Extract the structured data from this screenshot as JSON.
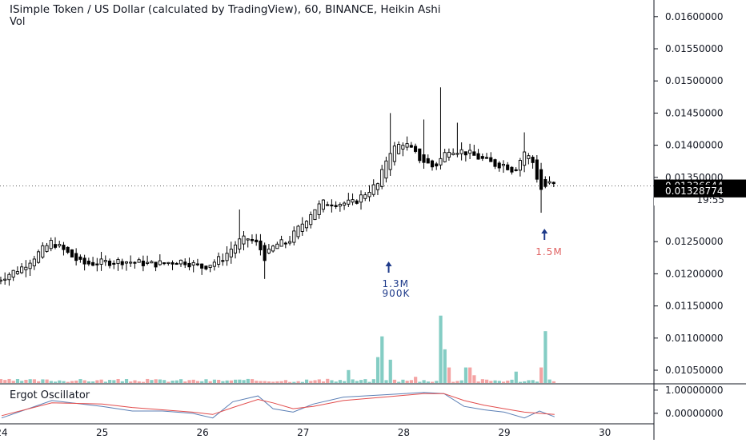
{
  "header": {
    "title": "ISimple Token / US Dollar (calculated by TradingView), 60, BINANCE, Heikin Ashi",
    "volume_label": "Vol",
    "oscillator_label": "Ergot Oscillator"
  },
  "chart_data": [
    {
      "type": "candlestick",
      "style": "Heikin Ashi",
      "interval": "60",
      "exchange": "BINANCE",
      "ylim": [
        0.0101,
        0.0164
      ],
      "y_tick_labels": [
        "0.01600000",
        "0.01550000",
        "0.01500000",
        "0.01450000",
        "0.01400000",
        "0.01350000",
        "0.01250000",
        "0.01200000",
        "0.01150000",
        "0.01100000",
        "0.01050000"
      ],
      "x_tick_labels": [
        "24",
        "25",
        "26",
        "27",
        "28",
        "29",
        "30"
      ],
      "price_labels": {
        "current_open": "0.01336644",
        "countdown": "19:55",
        "current_close": "0.01328774"
      },
      "annotations": [
        {
          "text": "1.3M",
          "day": 27.85,
          "color": "#1e3a8a"
        },
        {
          "text": "900K",
          "day": 27.85,
          "color": "#1e3a8a"
        },
        {
          "text": "1.5M",
          "day": 29.4,
          "color": "#e06060"
        }
      ],
      "keypoints_close": [
        [
          23.95,
          0.0119
        ],
        [
          24.2,
          0.0121
        ],
        [
          24.5,
          0.0125
        ],
        [
          24.8,
          0.01215
        ],
        [
          25.2,
          0.0122
        ],
        [
          25.5,
          0.01215
        ],
        [
          25.8,
          0.0122
        ],
        [
          26.0,
          0.0121
        ],
        [
          26.2,
          0.01225
        ],
        [
          26.35,
          0.0125
        ],
        [
          26.45,
          0.01255
        ],
        [
          26.55,
          0.01245
        ],
        [
          26.62,
          0.01225
        ],
        [
          26.72,
          0.01245
        ],
        [
          26.85,
          0.0125
        ],
        [
          26.95,
          0.0127
        ],
        [
          27.1,
          0.013
        ],
        [
          27.2,
          0.0131
        ],
        [
          27.35,
          0.0131
        ],
        [
          27.5,
          0.0131
        ],
        [
          27.65,
          0.0133
        ],
        [
          27.75,
          0.0134
        ],
        [
          27.85,
          0.0139
        ],
        [
          28.0,
          0.01405
        ],
        [
          28.15,
          0.0138
        ],
        [
          28.3,
          0.01365
        ],
        [
          28.45,
          0.01395
        ],
        [
          28.6,
          0.0139
        ],
        [
          28.75,
          0.0138
        ],
        [
          28.9,
          0.0137
        ],
        [
          29.0,
          0.0137
        ],
        [
          29.1,
          0.0136
        ],
        [
          29.2,
          0.0139
        ],
        [
          29.3,
          0.0137
        ],
        [
          29.35,
          0.0133
        ],
        [
          29.45,
          0.0134
        ],
        [
          29.5,
          0.01337
        ]
      ]
    },
    {
      "type": "bar",
      "title": "Vol",
      "ylim": [
        0,
        1.9
      ],
      "spikes": [
        {
          "day": 27.45,
          "value": 0.25,
          "up": true
        },
        {
          "day": 27.75,
          "value": 0.5,
          "up": true
        },
        {
          "day": 27.8,
          "value": 0.9,
          "up": true
        },
        {
          "day": 27.85,
          "value": 0.45,
          "up": true
        },
        {
          "day": 28.1,
          "value": 0.12,
          "up": false
        },
        {
          "day": 28.35,
          "value": 1.3,
          "up": true
        },
        {
          "day": 28.4,
          "value": 0.65,
          "up": true
        },
        {
          "day": 28.47,
          "value": 0.3,
          "up": false
        },
        {
          "day": 28.6,
          "value": 0.3,
          "up": true
        },
        {
          "day": 28.65,
          "value": 0.3,
          "up": false
        },
        {
          "day": 28.7,
          "value": 0.15,
          "up": false
        },
        {
          "day": 29.1,
          "value": 0.22,
          "up": true
        },
        {
          "day": 29.35,
          "value": 0.3,
          "up": false
        },
        {
          "day": 29.4,
          "value": 1.0,
          "up": true
        }
      ]
    },
    {
      "type": "line",
      "title": "Ergot Oscillator",
      "y_tick_labels": [
        "1.00000000",
        "0.00000000"
      ],
      "ylim": [
        -0.35,
        1.1
      ],
      "series": [
        {
          "color": "#5b7fb5",
          "values": [
            [
              24.0,
              -0.2
            ],
            [
              24.5,
              0.55
            ],
            [
              25.0,
              0.3
            ],
            [
              25.3,
              0.1
            ],
            [
              25.6,
              0.1
            ],
            [
              25.9,
              0.0
            ],
            [
              26.1,
              -0.2
            ],
            [
              26.3,
              0.5
            ],
            [
              26.55,
              0.75
            ],
            [
              26.7,
              0.2
            ],
            [
              26.9,
              0.05
            ],
            [
              27.1,
              0.4
            ],
            [
              27.4,
              0.7
            ],
            [
              27.8,
              0.8
            ],
            [
              28.2,
              0.9
            ],
            [
              28.4,
              0.85
            ],
            [
              28.6,
              0.3
            ],
            [
              28.8,
              0.15
            ],
            [
              29.0,
              0.05
            ],
            [
              29.2,
              -0.2
            ],
            [
              29.35,
              0.1
            ],
            [
              29.5,
              -0.15
            ]
          ]
        },
        {
          "color": "#e24c4c",
          "values": [
            [
              24.0,
              -0.1
            ],
            [
              24.5,
              0.45
            ],
            [
              25.0,
              0.4
            ],
            [
              25.3,
              0.25
            ],
            [
              25.6,
              0.15
            ],
            [
              25.9,
              0.05
            ],
            [
              26.1,
              -0.05
            ],
            [
              26.3,
              0.25
            ],
            [
              26.55,
              0.6
            ],
            [
              26.7,
              0.45
            ],
            [
              26.9,
              0.2
            ],
            [
              27.1,
              0.3
            ],
            [
              27.4,
              0.55
            ],
            [
              27.8,
              0.7
            ],
            [
              28.2,
              0.85
            ],
            [
              28.4,
              0.85
            ],
            [
              28.6,
              0.55
            ],
            [
              28.8,
              0.35
            ],
            [
              29.0,
              0.2
            ],
            [
              29.2,
              0.05
            ],
            [
              29.35,
              0.0
            ],
            [
              29.5,
              -0.05
            ]
          ]
        }
      ]
    }
  ]
}
